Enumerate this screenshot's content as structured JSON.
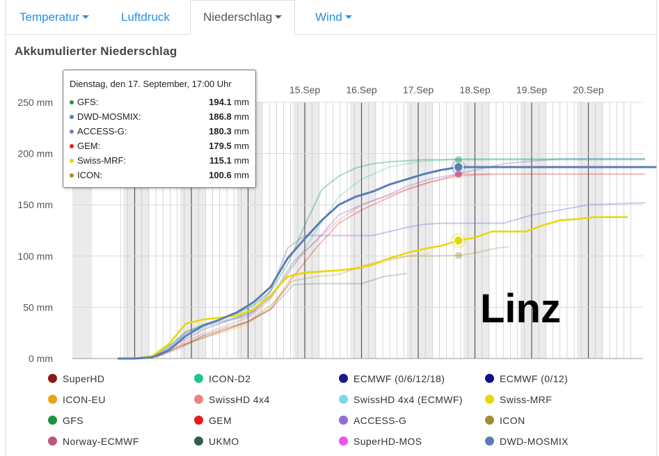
{
  "tabs": [
    {
      "label": "Temperatur",
      "dropdown": true,
      "active": false
    },
    {
      "label": "Luftdruck",
      "dropdown": false,
      "active": false
    },
    {
      "label": "Niederschlag",
      "dropdown": true,
      "active": true
    },
    {
      "label": "Wind",
      "dropdown": true,
      "active": false
    }
  ],
  "section_title": "Akkumulierter Niederschlag",
  "station": "Linz",
  "tooltip": {
    "title": "Dienstag, den 17. September, 17:00 Uhr",
    "unit": "mm",
    "rows": [
      {
        "name": "GFS:",
        "value": "194.1",
        "color": "#1a9641"
      },
      {
        "name": "DWD-MOSMIX:",
        "value": "186.8",
        "color": "#5b7db5"
      },
      {
        "name": "ACCESS-G:",
        "value": "180.3",
        "color": "#8f6fd6"
      },
      {
        "name": "GEM:",
        "value": "179.5",
        "color": "#e81c1c"
      },
      {
        "name": "Swiss-MRF:",
        "value": "115.1",
        "color": "#e8d800"
      },
      {
        "name": "ICON:",
        "value": "100.6",
        "color": "#a58a3a"
      }
    ]
  },
  "legend": [
    {
      "label": "SuperHD",
      "color": "#8b1a1a"
    },
    {
      "label": "ICON-D2",
      "color": "#1fc58a"
    },
    {
      "label": "ECMWF (0/6/12/18)",
      "color": "#1a1a8b"
    },
    {
      "label": "ECMWF (0/12)",
      "color": "#10108a"
    },
    {
      "label": "ICON-EU",
      "color": "#e8a317"
    },
    {
      "label": "SwissHD 4x4",
      "color": "#f08080"
    },
    {
      "label": "SwissHD 4x4 (ECMWF)",
      "color": "#7dd6f0"
    },
    {
      "label": "Swiss-MRF",
      "color": "#e8d800"
    },
    {
      "label": "GFS",
      "color": "#1a9641"
    },
    {
      "label": "GEM",
      "color": "#e81c1c"
    },
    {
      "label": "ACCESS-G",
      "color": "#8f6fd6"
    },
    {
      "label": "ICON",
      "color": "#a58a3a"
    },
    {
      "label": "Norway-ECMWF",
      "color": "#c0557a"
    },
    {
      "label": "UKMO",
      "color": "#2f5e4a"
    },
    {
      "label": "SuperHD-MOS",
      "color": "#f050f0"
    },
    {
      "label": "DWD-MOSMIX",
      "color": "#5b7db5"
    }
  ],
  "chart_data": {
    "type": "line",
    "xlabel": "",
    "ylabel": "",
    "x_unit": "days (September)",
    "xlim": [
      11.7,
      21.2
    ],
    "ylim": [
      0,
      250
    ],
    "y_ticks": [
      0,
      50,
      100,
      150,
      200,
      250
    ],
    "y_tick_labels": [
      "0 mm",
      "50 mm",
      "100 mm",
      "150 mm",
      "200 mm",
      "250 mm"
    ],
    "x_ticks": [
      15,
      16,
      17,
      18,
      19,
      20
    ],
    "x_tick_labels": [
      "15.Sep",
      "16.Sep",
      "17.Sep",
      "18.Sep",
      "19.Sep",
      "20.Sep"
    ],
    "hover_x": 17.71,
    "series": [
      {
        "name": "DWD-MOSMIX",
        "color": "#5b7db5",
        "opacity": 1.0,
        "width": 3,
        "x": [
          11.7,
          12.0,
          12.3,
          12.6,
          12.9,
          13.2,
          13.5,
          13.8,
          14.1,
          14.4,
          14.7,
          15.0,
          15.3,
          15.6,
          15.9,
          16.2,
          16.5,
          16.8,
          17.1,
          17.4,
          17.71,
          18.5,
          19.5,
          20.5,
          21.2
        ],
        "y": [
          0,
          0,
          1,
          8,
          22,
          32,
          38,
          45,
          55,
          70,
          98,
          117,
          135,
          150,
          158,
          163,
          170,
          175,
          180,
          184,
          186.8,
          186.8,
          186.8,
          186.8,
          186.8
        ]
      },
      {
        "name": "Swiss-MRF",
        "color": "#e8d800",
        "opacity": 1.0,
        "width": 2.5,
        "x": [
          11.7,
          12.0,
          12.3,
          12.6,
          12.9,
          13.2,
          13.5,
          13.8,
          14.1,
          14.4,
          14.7,
          15.0,
          15.3,
          15.6,
          15.9,
          16.2,
          16.5,
          16.8,
          17.1,
          17.4,
          17.71,
          18.0,
          18.3,
          18.6,
          18.9,
          19.2,
          19.5,
          19.8,
          20.1,
          20.4,
          20.7
        ],
        "y": [
          0,
          0,
          2,
          14,
          34,
          38,
          40,
          42,
          48,
          62,
          80,
          84,
          85,
          86,
          88,
          92,
          98,
          103,
          107,
          110,
          115.1,
          118,
          124,
          124,
          124,
          130,
          135,
          136,
          138,
          138,
          138
        ]
      },
      {
        "name": "GFS",
        "color": "#1a9641",
        "opacity": 0.35,
        "width": 2,
        "x": [
          11.7,
          12.0,
          12.3,
          12.6,
          12.9,
          13.2,
          13.5,
          13.8,
          14.1,
          14.4,
          14.7,
          15.0,
          15.3,
          15.6,
          15.9,
          16.2,
          16.5,
          16.8,
          17.1,
          17.4,
          17.71,
          18.5,
          19.5,
          20.5,
          21.0
        ],
        "y": [
          0,
          0,
          2,
          12,
          26,
          33,
          38,
          44,
          52,
          66,
          92,
          130,
          165,
          178,
          186,
          190,
          192,
          193,
          194,
          194,
          194.1,
          194.1,
          194.1,
          194.1,
          194.1
        ]
      },
      {
        "name": "ICON-D2",
        "color": "#1fc58a",
        "opacity": 0.25,
        "width": 2,
        "x": [
          11.7,
          12.0,
          12.4,
          12.8,
          13.2,
          13.6,
          14.0,
          14.4,
          14.8,
          15.2,
          15.6,
          16.0,
          16.5,
          17.0,
          17.71,
          18.5,
          19.5,
          20.5,
          21.0
        ],
        "y": [
          0,
          0,
          4,
          20,
          30,
          36,
          44,
          60,
          90,
          125,
          158,
          175,
          187,
          192,
          195,
          195,
          195,
          195,
          195
        ]
      },
      {
        "name": "ACCESS-G",
        "color": "#8f6fd6",
        "opacity": 0.4,
        "width": 2,
        "x": [
          11.7,
          12.0,
          12.3,
          12.6,
          12.9,
          13.2,
          13.5,
          13.8,
          14.1,
          14.4,
          14.7,
          15.0,
          15.3,
          15.6,
          15.9,
          16.2,
          16.5,
          16.8,
          17.1,
          17.4,
          17.71,
          18.0,
          18.5,
          19.0,
          19.5,
          20.0,
          20.5,
          21.0
        ],
        "y": [
          0,
          0,
          1,
          10,
          25,
          32,
          36,
          40,
          46,
          66,
          108,
          120,
          120,
          120,
          120,
          120,
          124,
          128,
          131,
          132,
          132,
          132,
          132,
          140,
          145,
          150,
          151,
          152
        ]
      },
      {
        "name": "ACCESS-G run 2",
        "color": "#8f6fd6",
        "opacity": 0.35,
        "width": 2,
        "x": [
          11.7,
          12.0,
          12.4,
          12.8,
          13.2,
          13.6,
          14.0,
          14.4,
          14.8,
          15.2,
          15.6,
          16.0,
          16.4,
          16.8,
          17.2,
          17.71,
          18.5,
          19.5,
          20.5,
          21.0
        ],
        "y": [
          0,
          0,
          3,
          16,
          28,
          36,
          42,
          60,
          95,
          115,
          140,
          150,
          158,
          168,
          175,
          180.3,
          190,
          195,
          195,
          195
        ]
      },
      {
        "name": "GEM",
        "color": "#e81c1c",
        "opacity": 0.3,
        "width": 2,
        "x": [
          11.7,
          12.0,
          12.4,
          12.8,
          13.2,
          13.6,
          14.0,
          14.4,
          14.8,
          15.2,
          15.6,
          16.0,
          16.4,
          16.8,
          17.2,
          17.71,
          18.5,
          19.5,
          20.5,
          21.0
        ],
        "y": [
          0,
          0,
          2,
          12,
          20,
          28,
          36,
          48,
          80,
          108,
          132,
          145,
          155,
          165,
          172,
          179.5,
          180,
          180,
          180,
          180
        ]
      },
      {
        "name": "SwissHD 4x4",
        "color": "#f08080",
        "opacity": 0.35,
        "width": 2,
        "x": [
          11.7,
          12.0,
          12.4,
          12.8,
          13.2,
          13.6,
          14.0,
          14.4,
          14.8,
          15.2,
          15.6,
          16.0,
          16.4,
          16.8,
          17.2,
          17.71,
          18.3
        ],
        "y": [
          0,
          0,
          3,
          14,
          24,
          32,
          40,
          58,
          92,
          115,
          135,
          150,
          158,
          165,
          172,
          178,
          180
        ]
      },
      {
        "name": "ICON",
        "color": "#a58a3a",
        "opacity": 0.3,
        "width": 2,
        "x": [
          11.7,
          12.0,
          12.4,
          12.8,
          13.2,
          13.6,
          14.0,
          14.4,
          14.8,
          15.2,
          15.6,
          16.0,
          16.4,
          16.8,
          17.2,
          17.71,
          18.0,
          18.4,
          18.6
        ],
        "y": [
          0,
          0,
          2,
          12,
          22,
          28,
          36,
          52,
          76,
          80,
          82,
          90,
          96,
          100,
          100,
          100.6,
          103,
          108,
          109
        ]
      },
      {
        "name": "UKMO",
        "color": "#2f5e4a",
        "opacity": 0.25,
        "width": 2,
        "x": [
          11.7,
          12.0,
          12.4,
          12.8,
          13.2,
          13.6,
          14.0,
          14.4,
          14.8,
          15.2,
          15.6,
          16.0,
          16.4,
          16.8
        ],
        "y": [
          0,
          0,
          2,
          10,
          22,
          30,
          36,
          48,
          72,
          73,
          73,
          73,
          80,
          83
        ]
      },
      {
        "name": "ICON-EU",
        "color": "#e8a317",
        "opacity": 0.25,
        "width": 2,
        "x": [
          11.7,
          12.0,
          12.4,
          12.8,
          13.2,
          13.6,
          14.0,
          14.4,
          14.8,
          15.2,
          15.6,
          16.0,
          16.4,
          16.8,
          17.2
        ],
        "y": [
          0,
          0,
          3,
          12,
          20,
          26,
          34,
          50,
          82,
          84,
          86,
          88,
          94,
          100,
          102
        ]
      }
    ],
    "markers": [
      {
        "series": "DWD-MOSMIX",
        "x": 17.71,
        "y": 186.8,
        "color": "#5b7db5"
      },
      {
        "series": "GFS",
        "x": 17.71,
        "y": 194.1,
        "color": "#1a9641"
      },
      {
        "series": "ACCESS-G",
        "x": 17.71,
        "y": 180.3,
        "color": "#8f6fd6"
      },
      {
        "series": "GEM",
        "x": 17.71,
        "y": 179.5,
        "color": "#e81c1c"
      },
      {
        "series": "Swiss-MRF",
        "x": 17.71,
        "y": 115.1,
        "color": "#e8d800"
      },
      {
        "series": "ICON",
        "x": 17.71,
        "y": 100.6,
        "color": "#a58a3a"
      }
    ]
  }
}
